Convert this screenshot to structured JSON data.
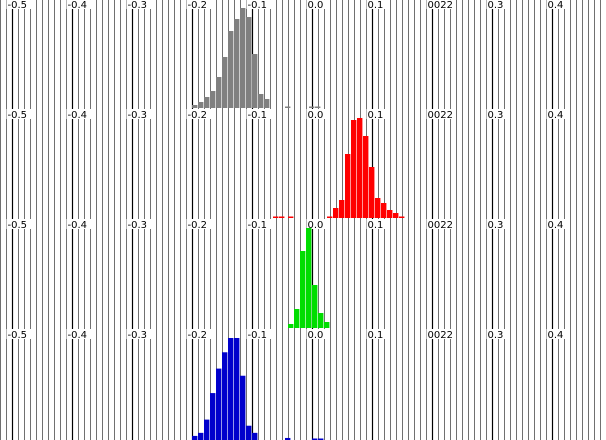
{
  "chart_data": {
    "type": "bar",
    "panels": [
      {
        "name": "",
        "color": "#808080",
        "tick_labels": [
          "-0.5",
          "-0.4",
          "-0.3",
          "-0.2",
          "-0.1",
          "0.0",
          "0.1",
          "0022",
          "0.3",
          "0.4"
        ],
        "bins": [
          {
            "x0": -0.2,
            "x1": -0.19,
            "y": 3
          },
          {
            "x0": -0.19,
            "x1": -0.18,
            "y": 6
          },
          {
            "x0": -0.18,
            "x1": -0.17,
            "y": 11
          },
          {
            "x0": -0.17,
            "x1": -0.16,
            "y": 17
          },
          {
            "x0": -0.16,
            "x1": -0.15,
            "y": 31
          },
          {
            "x0": -0.15,
            "x1": -0.14,
            "y": 51
          },
          {
            "x0": -0.14,
            "x1": -0.13,
            "y": 77
          },
          {
            "x0": -0.13,
            "x1": -0.12,
            "y": 89
          },
          {
            "x0": -0.12,
            "x1": -0.11,
            "y": 100
          },
          {
            "x0": -0.11,
            "x1": -0.1,
            "y": 91
          },
          {
            "x0": -0.1,
            "x1": -0.09,
            "y": 54
          },
          {
            "x0": -0.09,
            "x1": -0.08,
            "y": 14
          },
          {
            "x0": -0.08,
            "x1": -0.07,
            "y": 9
          },
          {
            "x0": -0.045,
            "x1": -0.035,
            "y": 1
          },
          {
            "x0": -0.005,
            "x1": 0.005,
            "y": 1
          },
          {
            "x0": 0.005,
            "x1": 0.015,
            "y": 1
          }
        ]
      },
      {
        "name": "",
        "color": "#ff0000",
        "tick_labels": [
          "-0.5",
          "-0.4",
          "-0.3",
          "-0.2",
          "-0.1",
          "0.0",
          "0.1",
          "0022",
          "0.3",
          "0.4"
        ],
        "bins": [
          {
            "x0": -0.065,
            "x1": -0.055,
            "y": 1
          },
          {
            "x0": -0.055,
            "x1": -0.045,
            "y": 1
          },
          {
            "x0": -0.04,
            "x1": -0.03,
            "y": 1
          },
          {
            "x0": 0.025,
            "x1": 0.035,
            "y": 1
          },
          {
            "x0": 0.035,
            "x1": 0.045,
            "y": 10
          },
          {
            "x0": 0.045,
            "x1": 0.055,
            "y": 18
          },
          {
            "x0": 0.055,
            "x1": 0.065,
            "y": 64
          },
          {
            "x0": 0.065,
            "x1": 0.075,
            "y": 98
          },
          {
            "x0": 0.075,
            "x1": 0.085,
            "y": 100
          },
          {
            "x0": 0.085,
            "x1": 0.095,
            "y": 82
          },
          {
            "x0": 0.095,
            "x1": 0.105,
            "y": 51
          },
          {
            "x0": 0.105,
            "x1": 0.115,
            "y": 20
          },
          {
            "x0": 0.115,
            "x1": 0.125,
            "y": 15
          },
          {
            "x0": 0.125,
            "x1": 0.135,
            "y": 8
          },
          {
            "x0": 0.135,
            "x1": 0.145,
            "y": 5
          },
          {
            "x0": 0.145,
            "x1": 0.155,
            "y": 1
          }
        ]
      },
      {
        "name": "",
        "color": "#00dd00",
        "tick_labels": [
          "-0.5",
          "-0.4",
          "-0.3",
          "-0.2",
          "-0.1",
          "0.0",
          "0.1",
          "0022",
          "0.3",
          "0.4"
        ],
        "bins": [
          {
            "x0": -0.04,
            "x1": -0.03,
            "y": 4
          },
          {
            "x0": -0.03,
            "x1": -0.02,
            "y": 19
          },
          {
            "x0": -0.02,
            "x1": -0.01,
            "y": 77
          },
          {
            "x0": -0.01,
            "x1": 0.0,
            "y": 100
          },
          {
            "x0": 0.0,
            "x1": 0.01,
            "y": 43
          },
          {
            "x0": 0.01,
            "x1": 0.02,
            "y": 15
          },
          {
            "x0": 0.02,
            "x1": 0.03,
            "y": 6
          }
        ]
      },
      {
        "name": "",
        "color": "#0000cc",
        "tick_labels": [
          "-0.5",
          "-0.4",
          "-0.3",
          "-0.2",
          "-0.1",
          "0.0",
          "0.1",
          "0022",
          "0.3",
          "0.4"
        ],
        "bins": [
          {
            "x0": -0.2,
            "x1": -0.19,
            "y": 4
          },
          {
            "x0": -0.19,
            "x1": -0.18,
            "y": 7
          },
          {
            "x0": -0.18,
            "x1": -0.17,
            "y": 20
          },
          {
            "x0": -0.17,
            "x1": -0.16,
            "y": 46
          },
          {
            "x0": -0.16,
            "x1": -0.15,
            "y": 70
          },
          {
            "x0": -0.15,
            "x1": -0.14,
            "y": 86
          },
          {
            "x0": -0.14,
            "x1": -0.13,
            "y": 100
          },
          {
            "x0": -0.13,
            "x1": -0.12,
            "y": 100
          },
          {
            "x0": -0.12,
            "x1": -0.11,
            "y": 63
          },
          {
            "x0": -0.11,
            "x1": -0.1,
            "y": 14
          },
          {
            "x0": -0.1,
            "x1": -0.09,
            "y": 7
          },
          {
            "x0": -0.045,
            "x1": -0.035,
            "y": 2
          },
          {
            "x0": 0.0,
            "x1": 0.01,
            "y": 1
          },
          {
            "x0": 0.01,
            "x1": 0.02,
            "y": 1
          }
        ]
      }
    ],
    "x_range": [
      -0.52,
      0.48
    ],
    "x_major_step": 0.1,
    "x_minor_step": 0.01,
    "y_max": 100,
    "grid": true,
    "legend": "none"
  },
  "colors": {
    "major_grid": "#000000",
    "minor_grid": "#333333"
  }
}
